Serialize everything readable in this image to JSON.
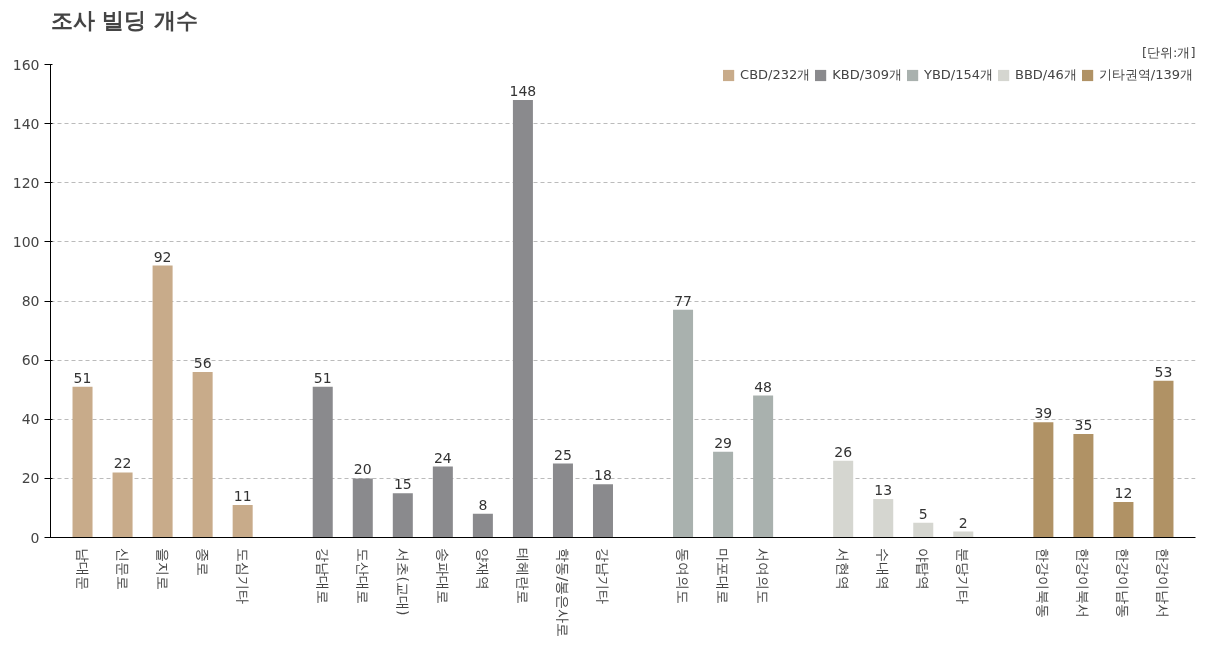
{
  "chart_data": {
    "type": "bar",
    "title": "조사 빌딩 개수",
    "annotations": [
      "[단위:개]"
    ],
    "categories": [
      "남대문",
      "신문로",
      "을지로",
      "종로",
      "도심기타",
      null,
      "강남대로",
      "도산대로",
      "서초(교대)",
      "송파대로",
      "양재역",
      "테헤란로",
      "학동/봉은사로",
      "강남기타",
      null,
      "동여의도",
      "마포대로",
      "서여의도",
      null,
      "서현역",
      "수내역",
      "야탑역",
      "분당기타",
      null,
      "한강이북동",
      "한강이북서",
      "한강이남동",
      "한강이남서"
    ],
    "series": [
      {
        "name": "CBD/232개",
        "color": "#c8ab8a",
        "values": [
          51,
          22,
          92,
          56,
          11,
          null,
          null,
          null,
          null,
          null,
          null,
          null,
          null,
          null,
          null,
          null,
          null,
          null,
          null,
          null,
          null,
          null,
          null,
          null,
          null,
          null,
          null,
          null
        ]
      },
      {
        "name": "KBD/309개",
        "color": "#8a8a8d",
        "values": [
          null,
          null,
          null,
          null,
          null,
          null,
          51,
          20,
          15,
          24,
          8,
          148,
          25,
          18,
          null,
          null,
          null,
          null,
          null,
          null,
          null,
          null,
          null,
          null,
          null,
          null,
          null,
          null
        ]
      },
      {
        "name": "YBD/154개",
        "color": "#a9b1ae",
        "values": [
          null,
          null,
          null,
          null,
          null,
          null,
          null,
          null,
          null,
          null,
          null,
          null,
          null,
          null,
          null,
          77,
          29,
          48,
          null,
          null,
          null,
          null,
          null,
          null,
          null,
          null,
          null,
          null
        ]
      },
      {
        "name": "BBD/46개",
        "color": "#d5d6d0",
        "values": [
          null,
          null,
          null,
          null,
          null,
          null,
          null,
          null,
          null,
          null,
          null,
          null,
          null,
          null,
          null,
          null,
          null,
          null,
          null,
          26,
          13,
          5,
          2,
          null,
          null,
          null,
          null,
          null
        ]
      },
      {
        "name": "기타권역/139개",
        "color": "#b09265",
        "values": [
          null,
          null,
          null,
          null,
          null,
          null,
          null,
          null,
          null,
          null,
          null,
          null,
          null,
          null,
          null,
          null,
          null,
          null,
          null,
          null,
          null,
          null,
          null,
          null,
          39,
          35,
          12,
          53
        ]
      }
    ],
    "ylim": [
      0,
      160
    ],
    "yticks": [
      0,
      20,
      40,
      60,
      80,
      100,
      120,
      140,
      160
    ],
    "grid": "y",
    "legend": "top right",
    "data_labels": true
  }
}
